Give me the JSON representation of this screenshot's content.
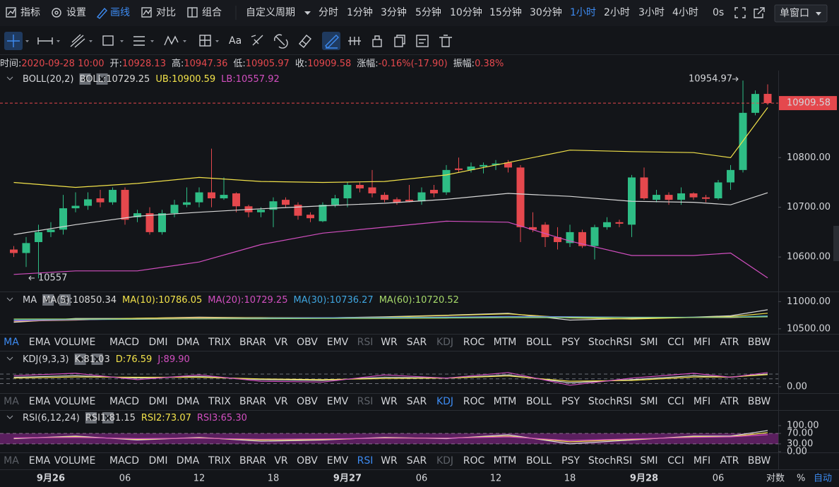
{
  "toolbar": {
    "tools": [
      "指标",
      "设置",
      "画线",
      "对比",
      "组合"
    ],
    "custom_period": "自定义周期",
    "periods": [
      "分时",
      "1分钟",
      "3分钟",
      "5分钟",
      "10分钟",
      "15分钟",
      "30分钟",
      "1小时",
      "2小时",
      "3小时",
      "4小时",
      "0s"
    ],
    "window": "单窗口"
  },
  "drawing_toolbar": {
    "font": "Aa"
  },
  "info_bar": [
    {
      "label": "时间:",
      "value": "2020-09-28 10:00"
    },
    {
      "label": "开:",
      "value": "10928.13"
    },
    {
      "label": "高:",
      "value": "10947.36"
    },
    {
      "label": "低:",
      "value": "10905.97"
    },
    {
      "label": "收:",
      "value": "10909.58"
    },
    {
      "label": "涨幅:",
      "value": "-0.16%(-17.90)"
    },
    {
      "label": "振幅:",
      "value": "0.38%"
    }
  ],
  "indicator_tabs": [
    "MA",
    "EMA",
    "VOLUME",
    "MACD",
    "DMI",
    "DMA",
    "TRIX",
    "BRAR",
    "VR",
    "OBV",
    "EMV",
    "RSI",
    "WR",
    "SAR",
    "KDJ",
    "ROC",
    "MTM",
    "BOLL",
    "PSY",
    "StochRSI",
    "SMI",
    "CCI",
    "MFI",
    "ATR",
    "BBW"
  ],
  "axis_controls": [
    "对数",
    "%",
    "自动"
  ],
  "chart_data": [
    {
      "type": "candlestick",
      "title": "BOLL(20,2)",
      "categories": [
        null,
        null,
        null,
        "9月26",
        null,
        null,
        null,
        null,
        null,
        "06",
        null,
        null,
        null,
        null,
        null,
        "12",
        null,
        null,
        null,
        null,
        null,
        "18",
        null,
        null,
        null,
        null,
        null,
        "9月27",
        null,
        null,
        null,
        null,
        null,
        "06",
        null,
        null,
        null,
        null,
        null,
        "12",
        null,
        null,
        null,
        null,
        null,
        "18",
        null,
        null,
        null,
        null,
        null,
        "9月28",
        null,
        null,
        null,
        null,
        null,
        "06",
        null,
        null,
        null,
        null
      ],
      "open": [
        10615,
        10608,
        10630,
        10650,
        10655,
        10698,
        10703,
        10718,
        10710,
        10735,
        10680,
        10688,
        10650,
        10688,
        10705,
        10710,
        10730,
        10718,
        10728,
        10702,
        10690,
        10695,
        10715,
        10705,
        10685,
        10672,
        10705,
        10718,
        10745,
        10740,
        10725,
        10716,
        10715,
        10712,
        10735,
        10730,
        10778,
        10775,
        10782,
        10785,
        10790,
        10780,
        10660,
        10665,
        10640,
        10628,
        10650,
        10622,
        10660,
        10670,
        10665,
        10760,
        10715,
        10725,
        10715,
        10728,
        10720,
        10718,
        10750,
        10775,
        10890,
        10928.13
      ],
      "high": [
        10622,
        10640,
        10665,
        10670,
        10725,
        10730,
        10730,
        10735,
        10740,
        10740,
        10695,
        10700,
        10695,
        10715,
        10740,
        10740,
        10818,
        10760,
        10730,
        10705,
        10700,
        10720,
        10720,
        10710,
        10690,
        10710,
        10725,
        10750,
        10750,
        10775,
        10730,
        10720,
        10745,
        10740,
        10745,
        10785,
        10800,
        10790,
        10790,
        10795,
        10795,
        10785,
        10690,
        10670,
        10660,
        10665,
        10655,
        10665,
        10680,
        10675,
        10765,
        10780,
        10735,
        10730,
        10740,
        10730,
        10725,
        10755,
        10785,
        10954.97,
        10935,
        10947.36
      ],
      "low": [
        10600,
        10580,
        10557,
        10640,
        10645,
        10690,
        10695,
        10700,
        10705,
        10665,
        10670,
        10645,
        10645,
        10680,
        10700,
        10700,
        10700,
        10715,
        10690,
        10680,
        10680,
        10660,
        10700,
        10675,
        10670,
        10670,
        10700,
        10700,
        10730,
        10720,
        10710,
        10705,
        10710,
        10705,
        10720,
        10725,
        10770,
        10770,
        10768,
        10775,
        10770,
        10630,
        10650,
        10620,
        10615,
        10620,
        10618,
        10595,
        10655,
        10660,
        10640,
        10715,
        10710,
        10705,
        10705,
        10715,
        10710,
        10715,
        10735,
        10770,
        10885,
        10905.97
      ],
      "close": [
        10608,
        10628,
        10650,
        10655,
        10698,
        10703,
        10716,
        10710,
        10735,
        10675,
        10688,
        10650,
        10688,
        10705,
        10710,
        10730,
        10718,
        10725,
        10702,
        10690,
        10695,
        10712,
        10705,
        10683,
        10678,
        10705,
        10718,
        10745,
        10738,
        10728,
        10715,
        10710,
        10712,
        10730,
        10728,
        10775,
        10775,
        10782,
        10785,
        10788,
        10780,
        10660,
        10655,
        10640,
        10630,
        10650,
        10622,
        10660,
        10670,
        10667,
        10760,
        10718,
        10725,
        10715,
        10728,
        10720,
        10717,
        10750,
        10775,
        10890,
        10928,
        10909.58
      ],
      "up_color": "#2ebd85",
      "down_color": "#e5484d",
      "series": [
        {
          "name": "BOLL:10729.25",
          "color": "#d8d8d8",
          "x": [
            0,
            5,
            10,
            15,
            20,
            25,
            30,
            35,
            40,
            45,
            50,
            55,
            58,
            61
          ],
          "values": [
            10645,
            10665,
            10682,
            10690,
            10697,
            10703,
            10708,
            10716,
            10728,
            10722,
            10712,
            10710,
            10705,
            10729.25
          ]
        },
        {
          "name": "UB:10900.59",
          "color": "#f2e24a",
          "x": [
            0,
            5,
            10,
            15,
            20,
            25,
            30,
            35,
            40,
            45,
            50,
            55,
            58,
            61
          ],
          "values": [
            10750,
            10740,
            10748,
            10760,
            10752,
            10750,
            10752,
            10765,
            10790,
            10815,
            10812,
            10810,
            10800,
            10900.59
          ]
        },
        {
          "name": "LB:10557.92",
          "color": "#d24fc0",
          "x": [
            0,
            5,
            10,
            15,
            20,
            25,
            30,
            35,
            40,
            45,
            50,
            55,
            58,
            61
          ],
          "values": [
            10565,
            10572,
            10572,
            10590,
            10625,
            10648,
            10660,
            10672,
            10670,
            10632,
            10603,
            10603,
            10608,
            10557.92
          ]
        }
      ],
      "max_label": "10954.97",
      "min_label": "10557",
      "last_price": {
        "value": 10909.58,
        "label": "10909.58"
      },
      "ylim": [
        10532,
        10975
      ],
      "yticks": [
        {
          "value": 10800,
          "label": "10800.00"
        },
        {
          "value": 10700,
          "label": "10700.00"
        },
        {
          "value": 10600,
          "label": "10600.00"
        }
      ]
    },
    {
      "type": "line",
      "title": "MA",
      "x": [
        0,
        5,
        10,
        15,
        20,
        25,
        30,
        35,
        40,
        45,
        50,
        55,
        58,
        61
      ],
      "series": [
        {
          "name": "MA(5):10850.34",
          "color": "#d8d8d8",
          "values": [
            10620,
            10690,
            10690,
            10715,
            10700,
            10700,
            10720,
            10750,
            10785,
            10660,
            10690,
            10715,
            10740,
            10850.34
          ]
        },
        {
          "name": "MA(10):10786.05",
          "color": "#f2e24a",
          "values": [
            10640,
            10660,
            10695,
            10705,
            10705,
            10700,
            10715,
            10745,
            10775,
            10700,
            10680,
            10710,
            10725,
            10786.05
          ]
        },
        {
          "name": "MA(20):10729.25",
          "color": "#d24fc0",
          "values": [
            10645,
            10665,
            10682,
            10690,
            10697,
            10703,
            10708,
            10716,
            10728,
            10722,
            10712,
            10710,
            10705,
            10729.25
          ]
        },
        {
          "name": "MA(30):10736.27",
          "color": "#3fa6e0",
          "values": [
            10660,
            10670,
            10675,
            10685,
            10695,
            10700,
            10705,
            10712,
            10722,
            10718,
            10712,
            10712,
            10712,
            10736.27
          ]
        },
        {
          "name": "MA(60):10720.52",
          "color": "#a6d96a",
          "values": [
            10680,
            10680,
            10680,
            10682,
            10685,
            10690,
            10693,
            10698,
            10705,
            10705,
            10705,
            10708,
            10710,
            10720.52
          ]
        }
      ],
      "ylim": [
        10420,
        11160
      ],
      "yticks": [
        {
          "value": 11000,
          "label": "11000.00"
        },
        {
          "value": 10500,
          "label": "10500.00"
        }
      ]
    },
    {
      "type": "line",
      "title": "KDJ(9,3,3)",
      "x": [
        0,
        5,
        10,
        15,
        20,
        25,
        30,
        35,
        40,
        45,
        50,
        55,
        58,
        61
      ],
      "series": [
        {
          "name": "K:81.03",
          "color": "#d8d8d8",
          "values": [
            60,
            70,
            55,
            65,
            45,
            40,
            60,
            55,
            75,
            25,
            45,
            70,
            60,
            81.03
          ]
        },
        {
          "name": "D:76.59",
          "color": "#f2e24a",
          "values": [
            55,
            62,
            60,
            60,
            50,
            45,
            52,
            55,
            68,
            35,
            40,
            62,
            62,
            76.59
          ]
        },
        {
          "name": "J:89.90",
          "color": "#d24fc0",
          "values": [
            70,
            85,
            45,
            75,
            35,
            30,
            75,
            55,
            90,
            10,
            55,
            85,
            60,
            89.9
          ]
        }
      ],
      "ref_lines": [
        20,
        50,
        80
      ],
      "ylim": [
        -40,
        138
      ],
      "yticks": [
        {
          "value": 0,
          "label": "0.00"
        }
      ]
    },
    {
      "type": "line",
      "title": "RSI(6,12,24)",
      "x": [
        0,
        5,
        10,
        15,
        20,
        25,
        30,
        35,
        40,
        45,
        50,
        55,
        58,
        61
      ],
      "series": [
        {
          "name": "RSI1:81.15",
          "color": "#d8d8d8",
          "values": [
            50,
            60,
            45,
            55,
            40,
            45,
            55,
            50,
            65,
            30,
            45,
            60,
            60,
            81.15
          ]
        },
        {
          "name": "RSI2:73.07",
          "color": "#f2e24a",
          "values": [
            52,
            57,
            48,
            53,
            45,
            47,
            53,
            52,
            60,
            38,
            47,
            57,
            58,
            73.07
          ]
        },
        {
          "name": "RSI3:65.30",
          "color": "#d24fc0",
          "values": [
            53,
            55,
            50,
            52,
            48,
            49,
            52,
            52,
            57,
            43,
            49,
            55,
            57,
            65.3
          ]
        }
      ],
      "band": [
        30,
        70
      ],
      "band_color": "#5a1f5e",
      "ylim": [
        -8,
        154
      ],
      "yticks": [
        {
          "value": 100,
          "label": "100.00"
        },
        {
          "value": 70,
          "label": "70.00"
        },
        {
          "value": 30,
          "label": "30.00"
        },
        {
          "value": 0,
          "label": "0.00"
        }
      ]
    }
  ]
}
